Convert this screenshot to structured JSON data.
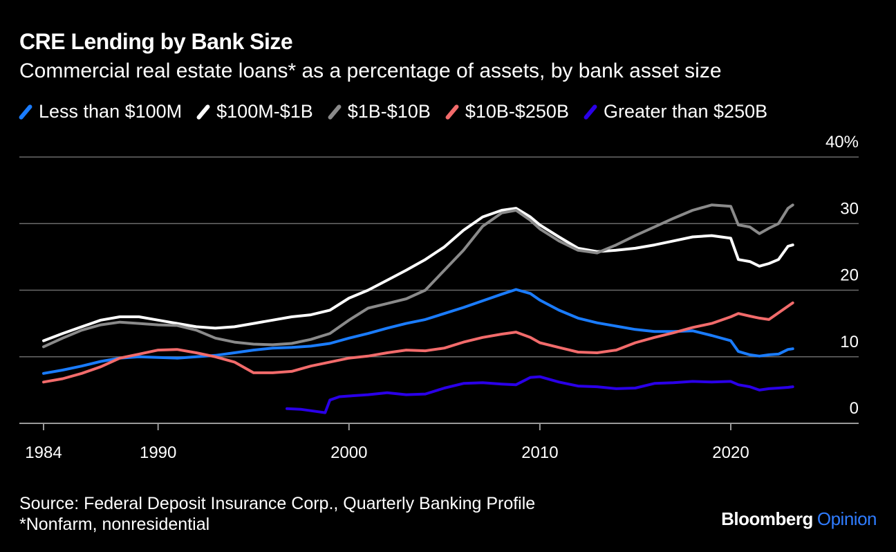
{
  "title": "CRE Lending by Bank Size",
  "subtitle": "Commercial real estate loans* as a percentage of assets, by bank asset size",
  "source": "Source: Federal Deposit Insurance Corp., Quarterly Banking Profile",
  "footnote": "*Nonfarm, nonresidential",
  "brand": {
    "name": "Bloomberg",
    "suffix": "Opinion"
  },
  "chart_data": {
    "type": "line",
    "title": "CRE Lending by Bank Size",
    "xlabel": "",
    "ylabel": "",
    "xlim": [
      1983.0,
      2026.5
    ],
    "ylim": [
      0,
      40
    ],
    "x_ticks": [
      1984,
      1990,
      2000,
      2010,
      2020
    ],
    "x_tick_labels": [
      "1984",
      "1990",
      "2000",
      "2010",
      "2020"
    ],
    "y_ticks": [
      0,
      10,
      20,
      30,
      40
    ],
    "y_tick_labels": [
      "0",
      "10",
      "20",
      "30",
      "40%"
    ],
    "grid": "horizontal",
    "legend_position": "top",
    "series": [
      {
        "name": "Less than $100M",
        "color": "#1a7cff",
        "points": [
          [
            1984,
            7.5
          ],
          [
            1985,
            8.0
          ],
          [
            1986,
            8.6
          ],
          [
            1987,
            9.3
          ],
          [
            1988,
            9.8
          ],
          [
            1989,
            10.0
          ],
          [
            1990,
            9.9
          ],
          [
            1991,
            9.8
          ],
          [
            1992,
            10.0
          ],
          [
            1993,
            10.2
          ],
          [
            1994,
            10.6
          ],
          [
            1995,
            11.0
          ],
          [
            1996,
            11.3
          ],
          [
            1997,
            11.4
          ],
          [
            1998,
            11.6
          ],
          [
            1999,
            12.0
          ],
          [
            2000,
            12.8
          ],
          [
            2001,
            13.5
          ],
          [
            2002,
            14.3
          ],
          [
            2003,
            15.0
          ],
          [
            2004,
            15.6
          ],
          [
            2005,
            16.5
          ],
          [
            2006,
            17.4
          ],
          [
            2007,
            18.4
          ],
          [
            2008,
            19.4
          ],
          [
            2008.75,
            20.1
          ],
          [
            2009.5,
            19.5
          ],
          [
            2010,
            18.5
          ],
          [
            2011,
            17.0
          ],
          [
            2012,
            15.8
          ],
          [
            2013,
            15.1
          ],
          [
            2014,
            14.6
          ],
          [
            2015,
            14.1
          ],
          [
            2016,
            13.8
          ],
          [
            2017,
            13.8
          ],
          [
            2018,
            13.9
          ],
          [
            2019,
            13.2
          ],
          [
            2020,
            12.4
          ],
          [
            2020.4,
            10.8
          ],
          [
            2021,
            10.3
          ],
          [
            2021.5,
            10.1
          ],
          [
            2022,
            10.3
          ],
          [
            2022.5,
            10.4
          ],
          [
            2023,
            11.1
          ],
          [
            2023.25,
            11.2
          ]
        ]
      },
      {
        "name": "$100M-$1B",
        "color": "#ffffff",
        "points": [
          [
            1984,
            12.4
          ],
          [
            1985,
            13.5
          ],
          [
            1986,
            14.5
          ],
          [
            1987,
            15.5
          ],
          [
            1988,
            16.0
          ],
          [
            1989,
            16.0
          ],
          [
            1990,
            15.5
          ],
          [
            1991,
            15.0
          ],
          [
            1992,
            14.5
          ],
          [
            1993,
            14.3
          ],
          [
            1994,
            14.5
          ],
          [
            1995,
            15.0
          ],
          [
            1996,
            15.5
          ],
          [
            1997,
            16.0
          ],
          [
            1998,
            16.3
          ],
          [
            1999,
            17.0
          ],
          [
            2000,
            18.8
          ],
          [
            2001,
            20.0
          ],
          [
            2002,
            21.5
          ],
          [
            2003,
            23.0
          ],
          [
            2004,
            24.6
          ],
          [
            2005,
            26.5
          ],
          [
            2006,
            29.0
          ],
          [
            2007,
            31.0
          ],
          [
            2008,
            32.0
          ],
          [
            2008.75,
            32.3
          ],
          [
            2009.5,
            31.0
          ],
          [
            2010,
            29.8
          ],
          [
            2011,
            28.0
          ],
          [
            2012,
            26.3
          ],
          [
            2013,
            25.8
          ],
          [
            2014,
            26.0
          ],
          [
            2015,
            26.3
          ],
          [
            2016,
            26.8
          ],
          [
            2017,
            27.4
          ],
          [
            2018,
            28.0
          ],
          [
            2019,
            28.2
          ],
          [
            2020,
            27.8
          ],
          [
            2020.4,
            24.6
          ],
          [
            2021,
            24.3
          ],
          [
            2021.5,
            23.6
          ],
          [
            2022,
            24.0
          ],
          [
            2022.5,
            24.6
          ],
          [
            2023,
            26.6
          ],
          [
            2023.25,
            26.8
          ]
        ]
      },
      {
        "name": "$1B-$10B",
        "color": "#8a8a8a",
        "points": [
          [
            1984,
            11.5
          ],
          [
            1985,
            12.8
          ],
          [
            1986,
            14.0
          ],
          [
            1987,
            14.8
          ],
          [
            1988,
            15.2
          ],
          [
            1989,
            15.0
          ],
          [
            1990,
            14.8
          ],
          [
            1991,
            14.7
          ],
          [
            1992,
            14.0
          ],
          [
            1993,
            12.8
          ],
          [
            1994,
            12.2
          ],
          [
            1995,
            11.9
          ],
          [
            1996,
            11.8
          ],
          [
            1997,
            12.0
          ],
          [
            1998,
            12.6
          ],
          [
            1999,
            13.5
          ],
          [
            2000,
            15.5
          ],
          [
            2001,
            17.3
          ],
          [
            2002,
            18.0
          ],
          [
            2003,
            18.7
          ],
          [
            2004,
            20.0
          ],
          [
            2005,
            23.0
          ],
          [
            2006,
            26.0
          ],
          [
            2007,
            29.6
          ],
          [
            2008,
            31.6
          ],
          [
            2008.75,
            32.0
          ],
          [
            2009.5,
            30.5
          ],
          [
            2010,
            29.2
          ],
          [
            2011,
            27.4
          ],
          [
            2012,
            26.0
          ],
          [
            2013,
            25.6
          ],
          [
            2014,
            26.8
          ],
          [
            2015,
            28.2
          ],
          [
            2016,
            29.5
          ],
          [
            2017,
            30.8
          ],
          [
            2018,
            32.0
          ],
          [
            2019,
            32.8
          ],
          [
            2020,
            32.6
          ],
          [
            2020.4,
            29.8
          ],
          [
            2021,
            29.5
          ],
          [
            2021.5,
            28.5
          ],
          [
            2022,
            29.3
          ],
          [
            2022.5,
            30.0
          ],
          [
            2023,
            32.3
          ],
          [
            2023.25,
            32.8
          ]
        ]
      },
      {
        "name": "$10B-$250B",
        "color": "#f26b6b",
        "points": [
          [
            1984,
            6.2
          ],
          [
            1985,
            6.7
          ],
          [
            1986,
            7.5
          ],
          [
            1987,
            8.5
          ],
          [
            1988,
            9.8
          ],
          [
            1989,
            10.4
          ],
          [
            1990,
            11.0
          ],
          [
            1991,
            11.1
          ],
          [
            1992,
            10.6
          ],
          [
            1993,
            10.0
          ],
          [
            1994,
            9.2
          ],
          [
            1995,
            7.6
          ],
          [
            1996,
            7.6
          ],
          [
            1997,
            7.8
          ],
          [
            1998,
            8.6
          ],
          [
            1999,
            9.2
          ],
          [
            2000,
            9.8
          ],
          [
            2001,
            10.1
          ],
          [
            2002,
            10.6
          ],
          [
            2003,
            11.0
          ],
          [
            2004,
            10.9
          ],
          [
            2005,
            11.3
          ],
          [
            2006,
            12.2
          ],
          [
            2007,
            12.9
          ],
          [
            2008,
            13.4
          ],
          [
            2008.75,
            13.7
          ],
          [
            2009.5,
            12.9
          ],
          [
            2010,
            12.1
          ],
          [
            2011,
            11.4
          ],
          [
            2012,
            10.7
          ],
          [
            2013,
            10.6
          ],
          [
            2014,
            11.0
          ],
          [
            2015,
            12.1
          ],
          [
            2016,
            12.9
          ],
          [
            2017,
            13.6
          ],
          [
            2018,
            14.4
          ],
          [
            2019,
            15.0
          ],
          [
            2020,
            16.0
          ],
          [
            2020.4,
            16.5
          ],
          [
            2021,
            16.1
          ],
          [
            2021.5,
            15.8
          ],
          [
            2022,
            15.6
          ],
          [
            2022.5,
            16.6
          ],
          [
            2023,
            17.6
          ],
          [
            2023.25,
            18.1
          ]
        ]
      },
      {
        "name": "Greater than $250B",
        "color": "#2a00e8",
        "points": [
          [
            1996.75,
            2.2
          ],
          [
            1997.5,
            2.1
          ],
          [
            1998.25,
            1.8
          ],
          [
            1998.75,
            1.6
          ],
          [
            1999,
            3.5
          ],
          [
            1999.5,
            4.0
          ],
          [
            2000,
            4.1
          ],
          [
            2001,
            4.3
          ],
          [
            2002,
            4.6
          ],
          [
            2003,
            4.3
          ],
          [
            2004,
            4.4
          ],
          [
            2005,
            5.3
          ],
          [
            2006,
            6.0
          ],
          [
            2007,
            6.1
          ],
          [
            2008,
            5.9
          ],
          [
            2008.75,
            5.8
          ],
          [
            2009.5,
            6.9
          ],
          [
            2010,
            7.0
          ],
          [
            2011,
            6.2
          ],
          [
            2012,
            5.6
          ],
          [
            2013,
            5.5
          ],
          [
            2014,
            5.2
          ],
          [
            2015,
            5.3
          ],
          [
            2016,
            6.0
          ],
          [
            2017,
            6.1
          ],
          [
            2018,
            6.3
          ],
          [
            2019,
            6.2
          ],
          [
            2020,
            6.3
          ],
          [
            2020.4,
            5.8
          ],
          [
            2021,
            5.5
          ],
          [
            2021.5,
            5.0
          ],
          [
            2022,
            5.2
          ],
          [
            2022.5,
            5.3
          ],
          [
            2023,
            5.4
          ],
          [
            2023.25,
            5.5
          ]
        ]
      }
    ]
  }
}
